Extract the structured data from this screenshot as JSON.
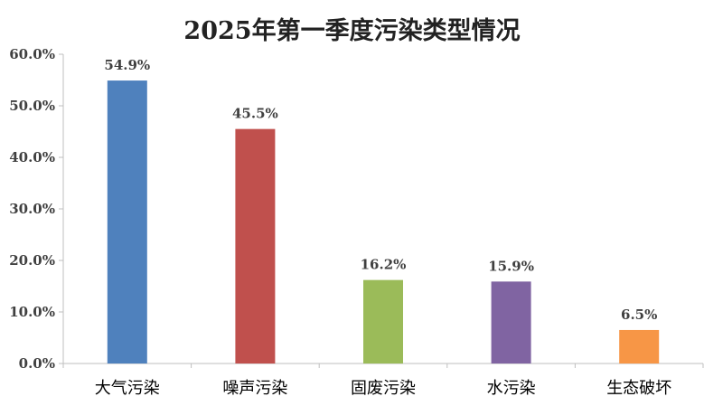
{
  "chart_data": {
    "type": "bar",
    "title": "2025年第一季度污染类型情况",
    "xlabel": "",
    "ylabel": "",
    "categories": [
      "大气污染",
      "噪声污染",
      "固废污染",
      "水污染",
      "生态破坏"
    ],
    "values": [
      54.9,
      45.5,
      16.2,
      15.9,
      6.5
    ],
    "data_labels": [
      "54.9%",
      "45.5%",
      "16.2%",
      "15.9%",
      "6.5%"
    ],
    "colors": [
      "#4F81BD",
      "#C0504D",
      "#9BBB59",
      "#8064A2",
      "#F79646"
    ],
    "ylim": [
      0,
      60
    ],
    "yticks": [
      0,
      10,
      20,
      30,
      40,
      50,
      60
    ],
    "ytick_labels": [
      "0.0%",
      "10.0%",
      "20.0%",
      "30.0%",
      "40.0%",
      "50.0%",
      "60.0%"
    ],
    "grid": false,
    "legend": "none"
  }
}
